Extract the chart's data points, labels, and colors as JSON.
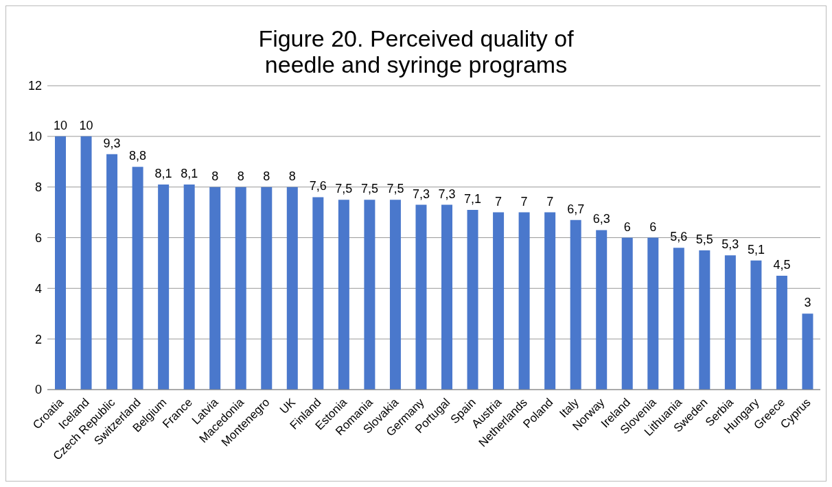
{
  "chart_data": {
    "type": "bar",
    "title": "Figure 20. Perceived quality of needle and syringe programs",
    "categories": [
      "Croatia",
      "Iceland",
      "Czech Republic",
      "Switzerland",
      "Belgium",
      "France",
      "Latvia",
      "Macedonia",
      "Montenegro",
      "UK",
      "Finland",
      "Estonia",
      "Romania",
      "Slovakia",
      "Germany",
      "Portugal",
      "Spain",
      "Austria",
      "Netherlands",
      "Poland",
      "Italy",
      "Norway",
      "Ireland",
      "Slovenia",
      "Lithuania",
      "Sweden",
      "Serbia",
      "Hungary",
      "Greece",
      "Cyprus"
    ],
    "values": [
      10,
      10,
      9.3,
      8.8,
      8.1,
      8.1,
      8,
      8,
      8,
      8,
      7.6,
      7.5,
      7.5,
      7.5,
      7.3,
      7.3,
      7.1,
      7,
      7,
      7,
      6.7,
      6.3,
      6,
      6,
      5.6,
      5.5,
      5.3,
      5.1,
      4.5,
      3
    ],
    "value_labels": [
      "10",
      "10",
      "9,3",
      "8,8",
      "8,1",
      "8,1",
      "8",
      "8",
      "8",
      "8",
      "7,6",
      "7,5",
      "7,5",
      "7,5",
      "7,3",
      "7,3",
      "7,1",
      "7",
      "7",
      "7",
      "6,7",
      "6,3",
      "6",
      "6",
      "5,6",
      "5,5",
      "5,3",
      "5,1",
      "4,5",
      "3"
    ],
    "color": "#4a78cc",
    "ylim": [
      0,
      12
    ],
    "yticks": [
      0,
      2,
      4,
      6,
      8,
      10,
      12
    ],
    "grid": "y",
    "legend": false
  }
}
